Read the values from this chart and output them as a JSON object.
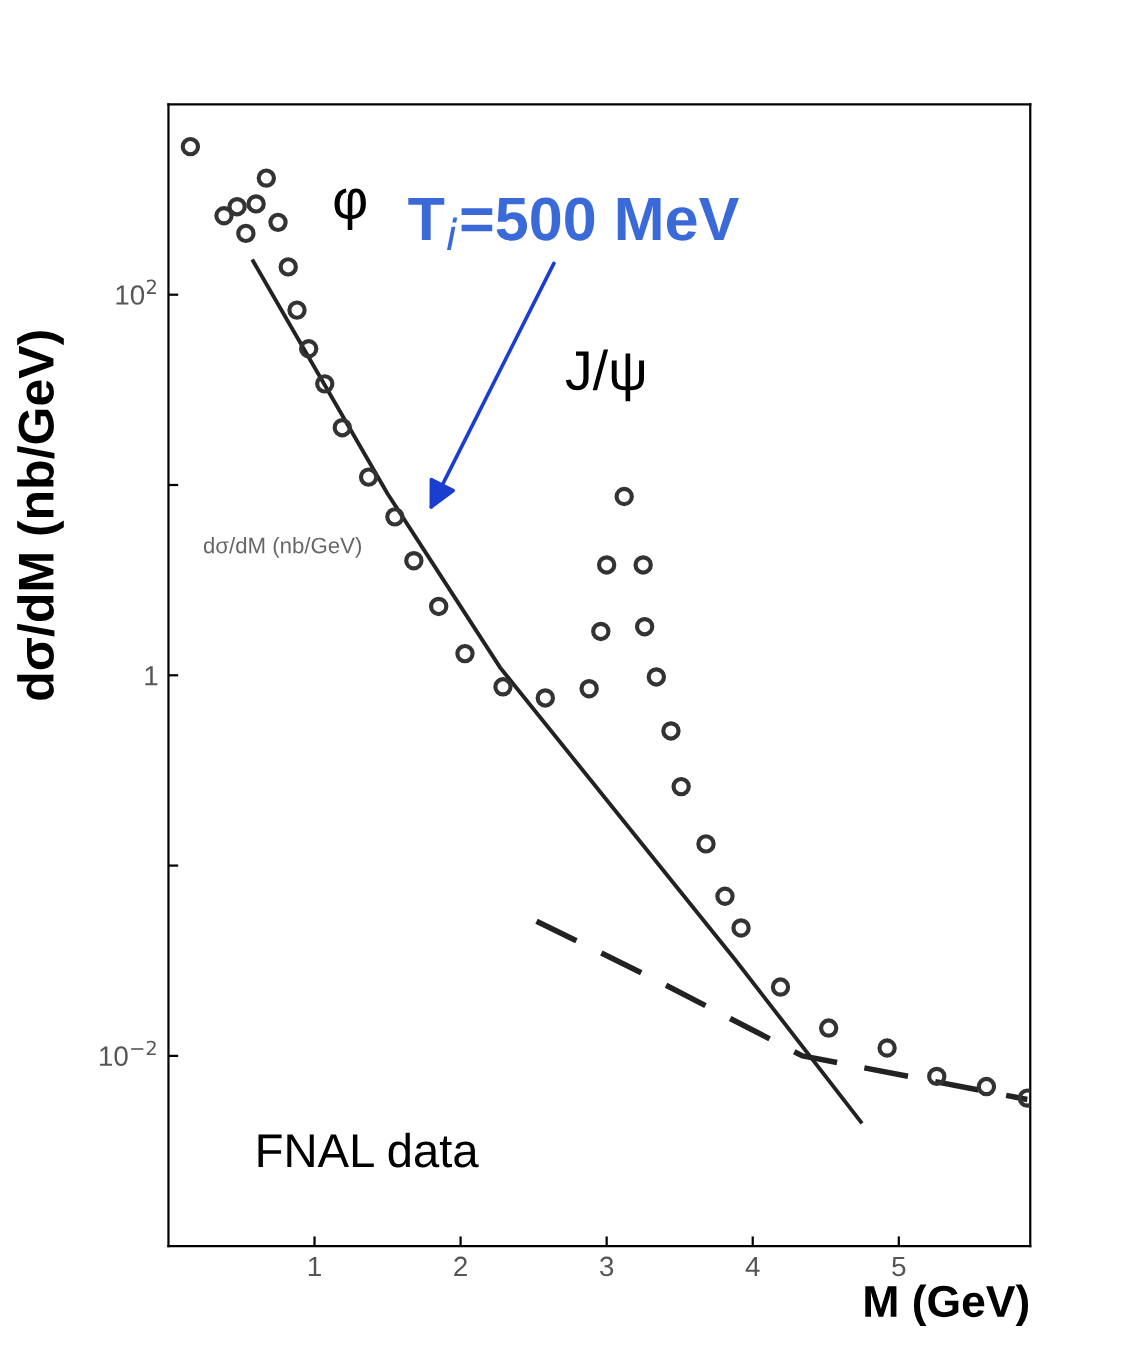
{
  "chart_data": {
    "type": "scatter",
    "xlabel": "M (GeV)",
    "ylabel": "dσ/dM (nb/GeV)",
    "log": "y",
    "xlim": [
      0,
      5.9
    ],
    "ylim": [
      0.001,
      1000
    ],
    "xticks": [
      1,
      2,
      3,
      4,
      5
    ],
    "yticks": [
      {
        "value": 0.01,
        "label": "10$^{−2}$"
      },
      {
        "value": 0.1,
        "label": null
      },
      {
        "value": 1,
        "label": "1"
      },
      {
        "value": 10,
        "label": null
      },
      {
        "value": 100,
        "label": "10$^{2}$"
      }
    ],
    "grid": false,
    "marker": "circle",
    "series": [
      {
        "color": "#333333",
        "x": [
          0.15,
          0.38,
          0.47,
          0.53,
          0.6,
          0.67,
          0.75,
          0.82,
          0.88,
          0.96,
          1.07,
          1.19,
          1.37,
          1.55,
          1.68,
          1.85,
          2.03,
          2.29,
          2.58,
          2.88,
          2.96,
          3.0,
          3.12,
          3.25,
          3.26,
          3.34,
          3.44,
          3.51,
          3.68,
          3.81,
          3.92,
          4.19,
          4.52,
          4.92,
          5.26,
          5.6,
          5.88
        ],
        "values": [
          600,
          260,
          290,
          210,
          300,
          410,
          240,
          140,
          83,
          52,
          34,
          20,
          11,
          6.8,
          4.0,
          2.3,
          1.3,
          0.87,
          0.76,
          0.85,
          1.7,
          3.8,
          8.7,
          3.8,
          1.8,
          0.98,
          0.51,
          0.26,
          0.13,
          0.069,
          0.047,
          0.023,
          0.014,
          0.011,
          0.0078,
          0.0069,
          0.006
        ]
      },
      {
        "type": "line",
        "line_style": "solid",
        "color": "#222222",
        "marker": "none",
        "x": [
          0.58,
          1.5,
          2.27,
          3.88,
          4.74
        ],
        "values": [
          150,
          9,
          1.1,
          0.032,
          0.0045
        ]
      },
      {
        "type": "line",
        "line_style": "dashed",
        "color": "#222222",
        "marker": "none",
        "x": [
          2.52,
          3.34,
          4.34,
          5.88
        ],
        "values": [
          0.051,
          0.025,
          0.01,
          0.0059
        ]
      }
    ],
    "annotations": [
      "T$_{i}$=500 MeV",
      "φ",
      "J/ψ",
      "dσ/dM (nb/GeV)",
      "FNAL data"
    ]
  }
}
